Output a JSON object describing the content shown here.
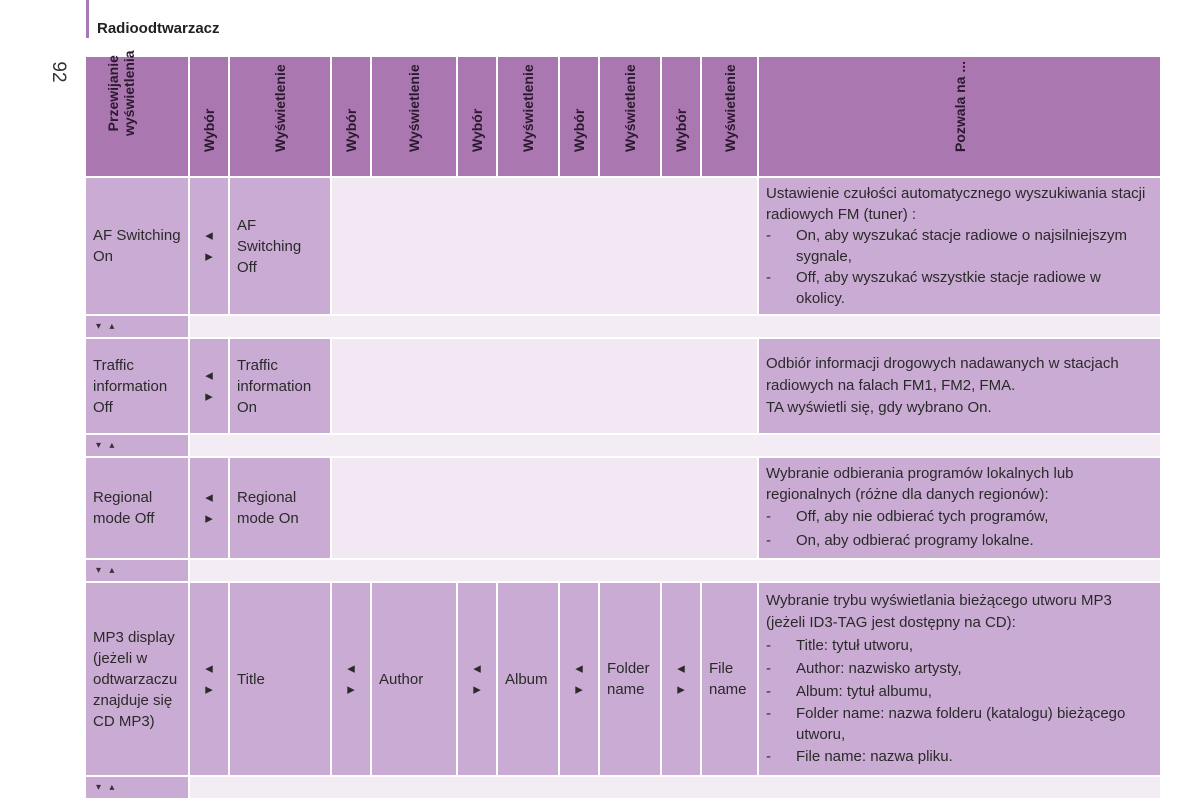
{
  "header": {
    "section_title": "Radioodtwarzacz",
    "page_number": "92"
  },
  "columns": {
    "c1": [
      "Przewijanie",
      "wyświetlenia"
    ],
    "c2": "Wybór",
    "c3": "Wyświetlenie",
    "c4": "Wybór",
    "c5": "Wyświetlenie",
    "c6": "Wybór",
    "c7": "Wyświetlenie",
    "c8": "Wybór",
    "c9": "Wyświetlenie",
    "c10": "Wybór",
    "c11": "Wyświetlenie",
    "c12": "Pozwala na ..."
  },
  "icons": {
    "left": "◂",
    "right": "▸",
    "down": "▾",
    "up": "▴"
  },
  "rows": [
    {
      "display": "AF Switching On",
      "option": "AF Switching Off",
      "intro": "Ustawienie czułości automatycznego wyszukiwania stacji radiowych FM (tuner) :",
      "bullets": [
        "On, aby wyszukać stacje radiowe o najsilniejszym sygnale,",
        "Off, aby wyszukać wszystkie stacje radiowe w okolicy."
      ]
    },
    {
      "display": "Traffic information Off",
      "option": "Traffic information On",
      "intro": "Odbiór informacji drogowych nadawanych w stacjach radiowych na falach FM1, FM2, FMA.",
      "extra": "TA wyświetli się, gdy wybrano On."
    },
    {
      "display": "Regional mode Off",
      "option": "Regional mode On",
      "intro": "Wybranie odbierania programów lokalnych lub regionalnych (różne dla danych regionów):",
      "bullets": [
        "Off, aby nie odbierać tych programów,",
        "On, aby odbierać programy lokalne."
      ]
    },
    {
      "display": "MP3 display (jeżeli w odtwarzaczu znajduje się CD MP3)",
      "options": [
        "Title",
        "Author",
        "Album",
        "Folder name",
        "File name"
      ],
      "intro": "Wybranie trybu wyświetlania bieżącego utworu MP3 (jeżeli ID3-TAG jest dostępny na CD):",
      "bullets": [
        "Title: tytuł utworu,",
        "Author: nazwisko artysty,",
        "Album: tytuł albumu,",
        "Folder name: nazwa folderu (katalogu) bieżącego utworu,",
        "File name: nazwa pliku."
      ]
    }
  ]
}
